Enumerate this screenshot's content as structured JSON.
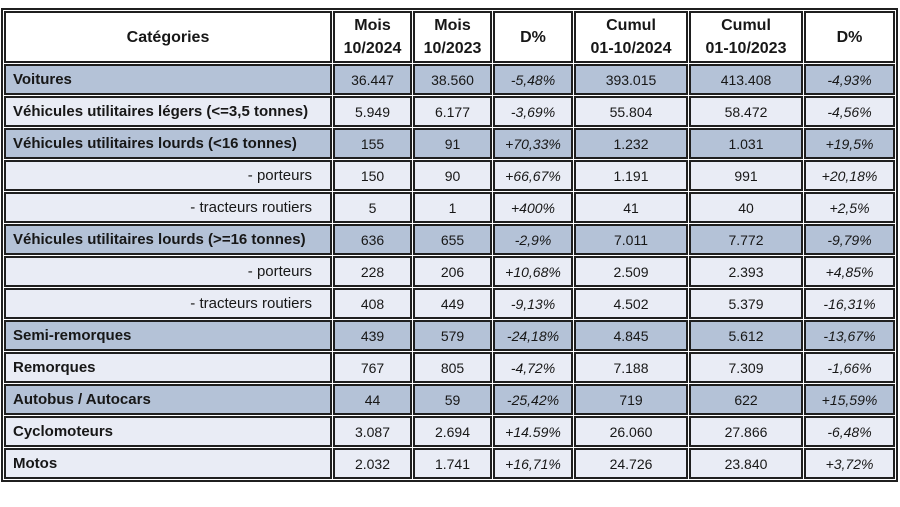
{
  "colors": {
    "border": "#1f1f1f",
    "row-dark": "#b4c2d7",
    "row-light": "#e9ecf5",
    "header-bg": "#ffffff",
    "text": "#171717"
  },
  "chart_data": {
    "type": "table",
    "columns": [
      "Catégories",
      "Mois\n10/2024",
      "Mois\n10/2023",
      "D%",
      "Cumul\n01-10/2024",
      "Cumul\n01-10/2023",
      "D%"
    ],
    "rows": [
      {
        "category": "Voitures",
        "style": "main",
        "shade": "dark",
        "values": [
          "36.447",
          "38.560",
          "-5,48%",
          "393.015",
          "413.408",
          "-4,93%"
        ]
      },
      {
        "category": "Véhicules utilitaires légers (<=3,5 tonnes)",
        "style": "main",
        "shade": "light",
        "values": [
          "5.949",
          "6.177",
          "-3,69%",
          "55.804",
          "58.472",
          "-4,56%"
        ]
      },
      {
        "category": "Véhicules utilitaires lourds (<16 tonnes)",
        "style": "main",
        "shade": "dark",
        "values": [
          "155",
          "91",
          "+70,33%",
          "1.232",
          "1.031",
          "+19,5%"
        ]
      },
      {
        "category": "- porteurs",
        "style": "sub",
        "shade": "light",
        "values": [
          "150",
          "90",
          "+66,67%",
          "1.191",
          "991",
          "+20,18%"
        ]
      },
      {
        "category": "- tracteurs routiers",
        "style": "sub",
        "shade": "light",
        "values": [
          "5",
          "1",
          "+400%",
          "41",
          "40",
          "+2,5%"
        ]
      },
      {
        "category": "Véhicules utilitaires lourds (>=16 tonnes)",
        "style": "main",
        "shade": "dark",
        "values": [
          "636",
          "655",
          "-2,9%",
          "7.011",
          "7.772",
          "-9,79%"
        ]
      },
      {
        "category": "- porteurs",
        "style": "sub",
        "shade": "light",
        "values": [
          "228",
          "206",
          "+10,68%",
          "2.509",
          "2.393",
          "+4,85%"
        ]
      },
      {
        "category": "- tracteurs routiers",
        "style": "sub",
        "shade": "light",
        "values": [
          "408",
          "449",
          "-9,13%",
          "4.502",
          "5.379",
          "-16,31%"
        ]
      },
      {
        "category": "Semi-remorques",
        "style": "main",
        "shade": "dark",
        "values": [
          "439",
          "579",
          "-24,18%",
          "4.845",
          "5.612",
          "-13,67%"
        ]
      },
      {
        "category": "Remorques",
        "style": "main",
        "shade": "light",
        "values": [
          "767",
          "805",
          "-4,72%",
          "7.188",
          "7.309",
          "-1,66%"
        ]
      },
      {
        "category": "Autobus / Autocars",
        "style": "main",
        "shade": "dark",
        "values": [
          "44",
          "59",
          "-25,42%",
          "719",
          "622",
          "+15,59%"
        ]
      },
      {
        "category": "Cyclomoteurs",
        "style": "main",
        "shade": "light",
        "values": [
          "3.087",
          "2.694",
          "+14.59%",
          "26.060",
          "27.866",
          "-6,48%"
        ]
      },
      {
        "category": "Motos",
        "style": "main",
        "shade": "light",
        "values": [
          "2.032",
          "1.741",
          "+16,71%",
          "24.726",
          "23.840",
          "+3,72%"
        ]
      }
    ]
  }
}
